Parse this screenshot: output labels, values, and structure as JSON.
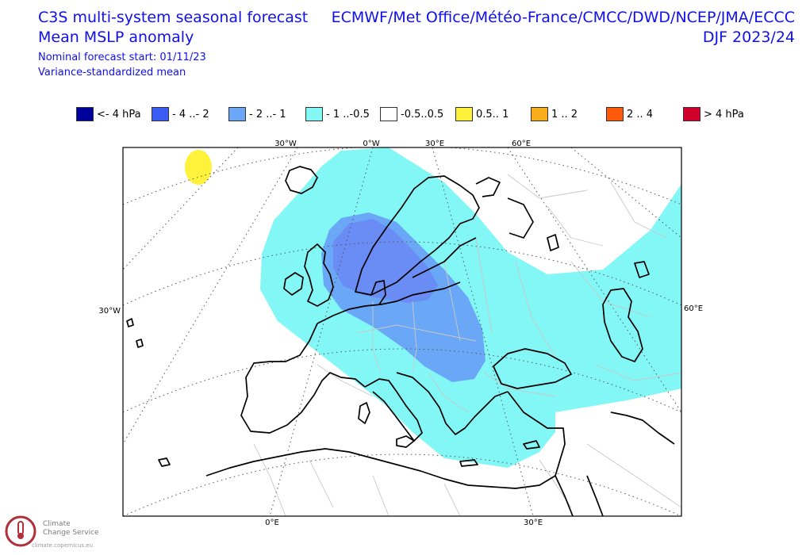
{
  "title": {
    "line1": "C3S multi-system seasonal forecast",
    "line2": "Mean MSLP anomaly",
    "line3": "Nominal forecast start: 01/11/23",
    "line4": "Variance-standardized mean"
  },
  "models": {
    "line1": "ECMWF/Met Office/Météo-France/CMCC/DWD/NCEP/JMA/ECCC",
    "line2": "DJF 2023/24"
  },
  "legend": [
    {
      "label": "<- 4 hPa",
      "color": "#00009c"
    },
    {
      "label": "- 4 ..- 2",
      "color": "#3c5df5"
    },
    {
      "label": "- 2 ..- 1",
      "color": "#6aa8f7"
    },
    {
      "label": "- 1 ..-0.5",
      "color": "#83f7f5"
    },
    {
      "label": "-0.5..0.5",
      "color": "#ffffff"
    },
    {
      "label": "0.5.. 1",
      "color": "#fff23a"
    },
    {
      "label": "1 .. 2",
      "color": "#f8ae1c"
    },
    {
      "label": "2 .. 4",
      "color": "#ff5a0a"
    },
    {
      "label": "> 4 hPa",
      "color": "#d0002a"
    }
  ],
  "map": {
    "lon_labels_top": [
      "30°W",
      "0°W",
      "30°E",
      "60°E"
    ],
    "lon_labels_bottom": [
      "0°E",
      "30°E"
    ],
    "lat_labels_left": [
      "30°W"
    ],
    "lat_labels_right": [
      "60°E"
    ],
    "colors": {
      "light_cyan": "#83f7f5",
      "mid_blue": "#6aa8f7",
      "blue": "#6a8cf5",
      "yellow": "#fff23a",
      "grid": "#666666",
      "coast": "#000000",
      "border": "#c8c8c8"
    }
  },
  "logo": {
    "line1": "Climate",
    "line2": "Change Service",
    "url": "climate.copernicus.eu"
  }
}
